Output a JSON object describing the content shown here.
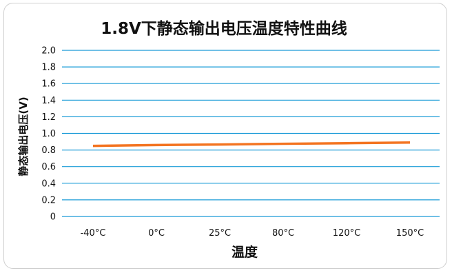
{
  "chart_data": {
    "type": "line",
    "title": "1.8V下静态输出电压温度特性曲线",
    "xlabel": "温度",
    "ylabel": "静态输出电压(V)",
    "categories": [
      "-40°C",
      "0°C",
      "25°C",
      "80°C",
      "120°C",
      "150°C"
    ],
    "y_tick_labels": [
      "2.0",
      "1.8",
      "1.6",
      "1.4",
      "1.2",
      "1.0",
      "0.8",
      "0.6",
      "0.4",
      "0.2",
      "0"
    ],
    "ylim": [
      0,
      2.0
    ],
    "grid": true,
    "legend": "none",
    "series": [
      {
        "values": [
          0.85,
          0.86,
          0.866,
          0.875,
          0.882,
          0.89
        ]
      }
    ],
    "colors": {
      "series": "#f37421",
      "grid": "#1a9bd7"
    }
  }
}
